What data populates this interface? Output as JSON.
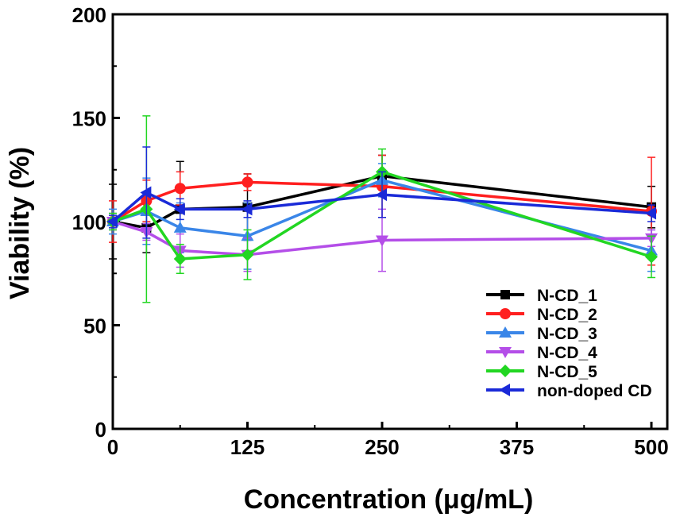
{
  "chart_data": {
    "type": "line",
    "title": "",
    "xlabel": "Concentration (μg/mL)",
    "ylabel": "Viability (%)",
    "xlim": [
      0,
      500
    ],
    "ylim": [
      0,
      200
    ],
    "x_ticks": [
      0,
      125,
      250,
      375,
      500
    ],
    "x_tick_labels": [
      "0",
      "125",
      "250",
      "375",
      "500"
    ],
    "y_ticks": [
      0,
      50,
      100,
      150,
      200
    ],
    "y_tick_labels": [
      "0",
      "50",
      "100",
      "150",
      "200"
    ],
    "grid": false,
    "legend_position": "bottom-right",
    "x": [
      0,
      31.25,
      62.5,
      125,
      250,
      500
    ],
    "series": [
      {
        "name": "N-CD_1",
        "color": "#000000",
        "marker": "square",
        "values": [
          100,
          97,
          106,
          107,
          122,
          107
        ],
        "errors": [
          18,
          12,
          23,
          16,
          10,
          10
        ]
      },
      {
        "name": "N-CD_2",
        "color": "#ff1f1f",
        "marker": "circle",
        "values": [
          100,
          110,
          116,
          119,
          117,
          105
        ],
        "errors": [
          10,
          10,
          8,
          4,
          15,
          26
        ]
      },
      {
        "name": "N-CD_3",
        "color": "#3a86e8",
        "marker": "triangle-up",
        "values": [
          100,
          105,
          97,
          93,
          120,
          86
        ],
        "errors": [
          6,
          16,
          12,
          16,
          8,
          10
        ]
      },
      {
        "name": "N-CD_4",
        "color": "#b44ee8",
        "marker": "triangle-down",
        "values": [
          100,
          95,
          86,
          84,
          91,
          92
        ],
        "errors": [
          4,
          4,
          8,
          8,
          15,
          4
        ]
      },
      {
        "name": "N-CD_5",
        "color": "#22d622",
        "marker": "diamond",
        "values": [
          100,
          106,
          82,
          84,
          124,
          83
        ],
        "errors": [
          4,
          45,
          7,
          12,
          11,
          10
        ]
      },
      {
        "name": "non-doped CD",
        "color": "#1a2ad8",
        "marker": "triangle-left",
        "values": [
          100,
          114,
          106,
          106,
          113,
          104
        ],
        "errors": [
          3,
          22,
          5,
          4,
          11,
          4
        ]
      }
    ]
  }
}
